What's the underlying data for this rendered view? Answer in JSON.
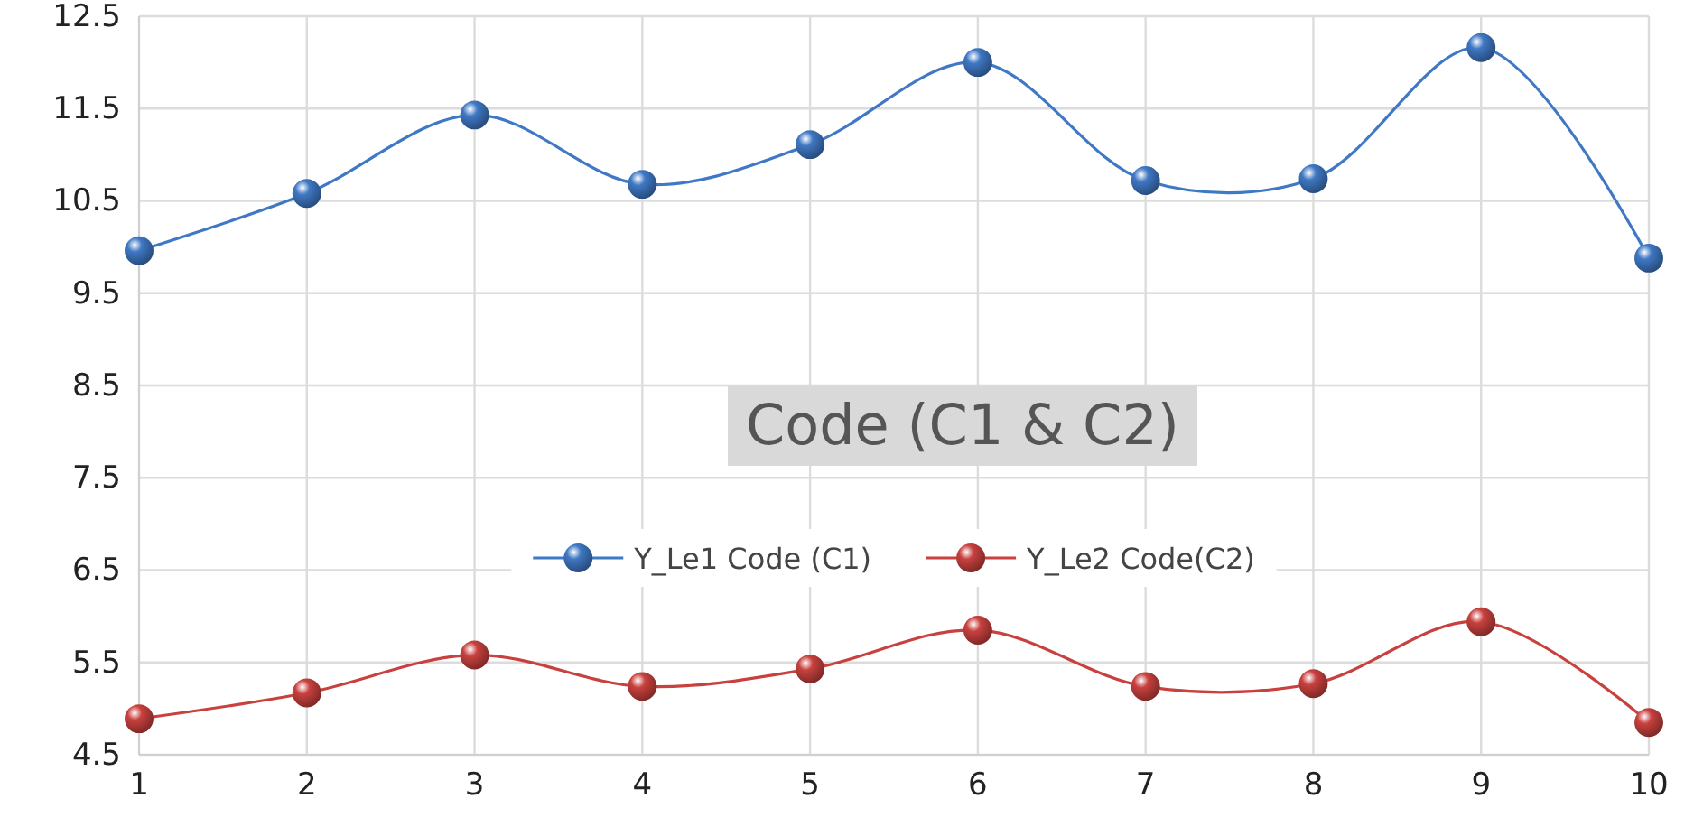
{
  "chart_data": {
    "type": "line",
    "title": "Code (C1 & C2)",
    "x": [
      1,
      2,
      3,
      4,
      5,
      6,
      7,
      8,
      9,
      10
    ],
    "series": [
      {
        "name": "Y_Le1 Code (C1)",
        "color": "#3f78c4",
        "values": [
          9.96,
          10.58,
          11.43,
          10.68,
          11.11,
          12.0,
          10.72,
          10.74,
          12.16,
          9.88
        ]
      },
      {
        "name": "Y_Le2 Code(C2)",
        "color": "#c8413e",
        "values": [
          4.89,
          5.17,
          5.58,
          5.24,
          5.43,
          5.85,
          5.24,
          5.27,
          5.94,
          4.85
        ]
      }
    ],
    "xlim": [
      1,
      10
    ],
    "xticks": [
      1,
      2,
      3,
      4,
      5,
      6,
      7,
      8,
      9,
      10
    ],
    "ylim": [
      4.5,
      12.5
    ],
    "yticks": [
      4.5,
      5.5,
      6.5,
      7.5,
      8.5,
      9.5,
      10.5,
      11.5,
      12.5
    ],
    "grid": true,
    "legend": "center",
    "marker": "circle",
    "line_style": "solid"
  }
}
